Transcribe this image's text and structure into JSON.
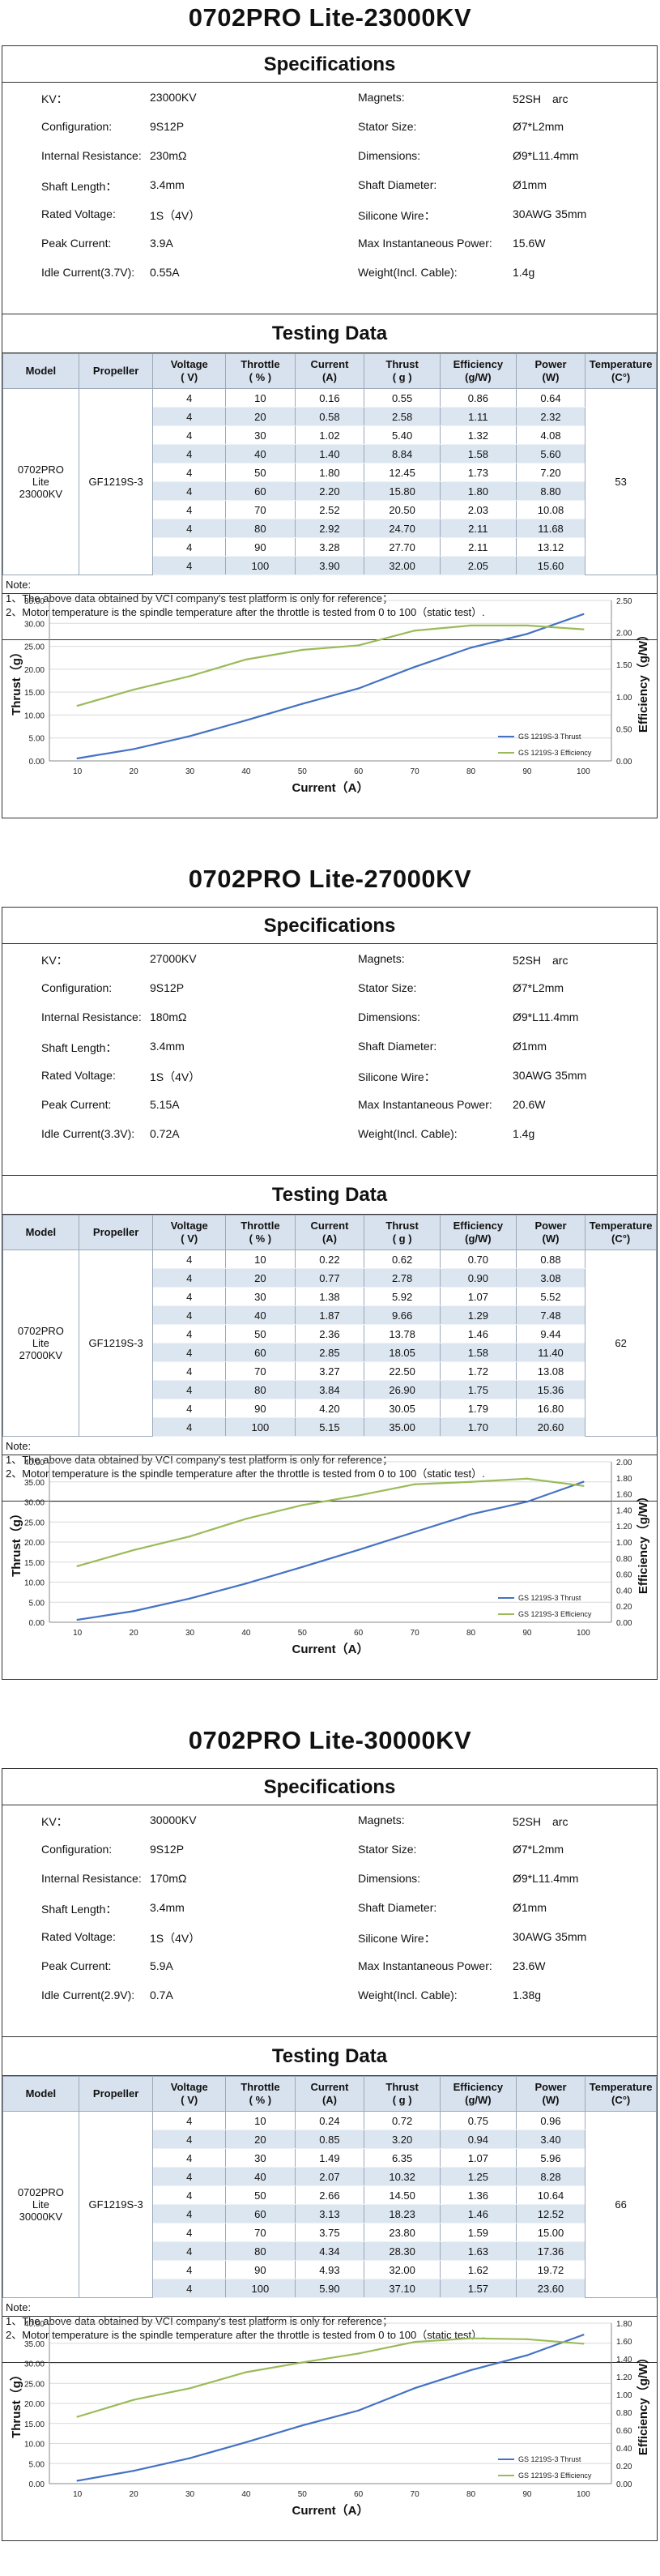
{
  "labels": {
    "specifications": "Specifications",
    "testing_data": "Testing Data",
    "note_title": "Note:",
    "note_1": "1、The above data obtained by VCI company's test platform is only for reference；",
    "note_2": "2、Motor temperature is the spindle temperature after the throttle is tested from 0 to 100（static test）.",
    "spec_keys": {
      "kv": "KV：",
      "configuration": "Configuration:",
      "resistance": "Internal Resistance:",
      "shaft_length": "Shaft Length：",
      "rated_voltage": "Rated Voltage:",
      "peak_current": "Peak Current:",
      "magnets": "Magnets:",
      "stator": "Stator Size:",
      "dimensions": "Dimensions:",
      "shaft_diameter": "Shaft Diameter:",
      "silicone": "Silicone Wire：",
      "max_power": "Max Instantaneous Power:",
      "weight": "Weight(Incl. Cable):"
    },
    "headers": {
      "model": "Model",
      "propeller": "Propeller",
      "voltage": "Voltage\n( V)",
      "throttle": "Throttle\n( % )",
      "current": "Current\n(A)",
      "thrust": "Thrust\n( g )",
      "efficiency": "Efficiency\n(g/W)",
      "power": "Power\n(W)",
      "temperature": "Temperature\n(C°)"
    }
  },
  "products": [
    {
      "title": "0702PRO Lite-23000KV",
      "specs": {
        "kv": "23000KV",
        "configuration": "9S12P",
        "resistance": "230mΩ",
        "shaft_length": "3.4mm",
        "rated_voltage": "1S（4V）",
        "peak_current": "3.9A",
        "idle_key": "Idle Current(3.7V):",
        "idle": "0.55A",
        "magnets": "52SH　arc",
        "stator": "Ø7*L2mm",
        "dimensions": "Ø9*L11.4mm",
        "shaft_diameter": "Ø1mm",
        "silicone": "30AWG 35mm",
        "max_power": "15.6W",
        "weight": "1.4g"
      },
      "model": "0702PRO Lite 23000KV",
      "propeller": "GF1219S-3",
      "temperature": "53",
      "rows": [
        [
          "4",
          "10",
          "0.16",
          "0.55",
          "0.86",
          "0.64"
        ],
        [
          "4",
          "20",
          "0.58",
          "2.58",
          "1.11",
          "2.32"
        ],
        [
          "4",
          "30",
          "1.02",
          "5.40",
          "1.32",
          "4.08"
        ],
        [
          "4",
          "40",
          "1.40",
          "8.84",
          "1.58",
          "5.60"
        ],
        [
          "4",
          "50",
          "1.80",
          "12.45",
          "1.73",
          "7.20"
        ],
        [
          "4",
          "60",
          "2.20",
          "15.80",
          "1.80",
          "8.80"
        ],
        [
          "4",
          "70",
          "2.52",
          "20.50",
          "2.03",
          "10.08"
        ],
        [
          "4",
          "80",
          "2.92",
          "24.70",
          "2.11",
          "11.68"
        ],
        [
          "4",
          "90",
          "3.28",
          "27.70",
          "2.11",
          "13.12"
        ],
        [
          "4",
          "100",
          "3.90",
          "32.00",
          "2.05",
          "15.60"
        ]
      ]
    },
    {
      "title": "0702PRO Lite-27000KV",
      "specs": {
        "kv": "27000KV",
        "configuration": "9S12P",
        "resistance": "180mΩ",
        "shaft_length": "3.4mm",
        "rated_voltage": "1S（4V）",
        "peak_current": "5.15A",
        "idle_key": "Idle Current(3.3V):",
        "idle": "0.72A",
        "magnets": "52SH　arc",
        "stator": "Ø7*L2mm",
        "dimensions": "Ø9*L11.4mm",
        "shaft_diameter": "Ø1mm",
        "silicone": "30AWG 35mm",
        "max_power": "20.6W",
        "weight": "1.4g"
      },
      "model": "0702PRO Lite 27000KV",
      "propeller": "GF1219S-3",
      "temperature": "62",
      "rows": [
        [
          "4",
          "10",
          "0.22",
          "0.62",
          "0.70",
          "0.88"
        ],
        [
          "4",
          "20",
          "0.77",
          "2.78",
          "0.90",
          "3.08"
        ],
        [
          "4",
          "30",
          "1.38",
          "5.92",
          "1.07",
          "5.52"
        ],
        [
          "4",
          "40",
          "1.87",
          "9.66",
          "1.29",
          "7.48"
        ],
        [
          "4",
          "50",
          "2.36",
          "13.78",
          "1.46",
          "9.44"
        ],
        [
          "4",
          "60",
          "2.85",
          "18.05",
          "1.58",
          "11.40"
        ],
        [
          "4",
          "70",
          "3.27",
          "22.50",
          "1.72",
          "13.08"
        ],
        [
          "4",
          "80",
          "3.84",
          "26.90",
          "1.75",
          "15.36"
        ],
        [
          "4",
          "90",
          "4.20",
          "30.05",
          "1.79",
          "16.80"
        ],
        [
          "4",
          "100",
          "5.15",
          "35.00",
          "1.70",
          "20.60"
        ]
      ]
    },
    {
      "title": "0702PRO Lite-30000KV",
      "specs": {
        "kv": "30000KV",
        "configuration": "9S12P",
        "resistance": "170mΩ",
        "shaft_length": "3.4mm",
        "rated_voltage": "1S（4V）",
        "peak_current": "5.9A",
        "idle_key": "Idle Current(2.9V):",
        "idle": "0.7A",
        "magnets": "52SH　arc",
        "stator": "Ø7*L2mm",
        "dimensions": "Ø9*L11.4mm",
        "shaft_diameter": "Ø1mm",
        "silicone": "30AWG 35mm",
        "max_power": "23.6W",
        "weight": "1.38g"
      },
      "model": "0702PRO Lite 30000KV",
      "propeller": "GF1219S-3",
      "temperature": "66",
      "rows": [
        [
          "4",
          "10",
          "0.24",
          "0.72",
          "0.75",
          "0.96"
        ],
        [
          "4",
          "20",
          "0.85",
          "3.20",
          "0.94",
          "3.40"
        ],
        [
          "4",
          "30",
          "1.49",
          "6.35",
          "1.07",
          "5.96"
        ],
        [
          "4",
          "40",
          "2.07",
          "10.32",
          "1.25",
          "8.28"
        ],
        [
          "4",
          "50",
          "2.66",
          "14.50",
          "1.36",
          "10.64"
        ],
        [
          "4",
          "60",
          "3.13",
          "18.23",
          "1.46",
          "12.52"
        ],
        [
          "4",
          "70",
          "3.75",
          "23.80",
          "1.59",
          "15.00"
        ],
        [
          "4",
          "80",
          "4.34",
          "28.30",
          "1.63",
          "17.36"
        ],
        [
          "4",
          "90",
          "4.93",
          "32.00",
          "1.62",
          "19.72"
        ],
        [
          "4",
          "100",
          "5.90",
          "37.10",
          "1.57",
          "23.60"
        ]
      ]
    }
  ],
  "chart_data": [
    {
      "type": "line",
      "x": [
        10,
        20,
        30,
        40,
        50,
        60,
        70,
        80,
        90,
        100
      ],
      "xlabel": "Current（A）",
      "ylabel": "Thrust（g）",
      "y2label": "Efficiency（g/W）",
      "ylim": [
        0,
        35
      ],
      "y2lim": [
        0,
        2.5
      ],
      "yticks": [
        "0.00",
        "5.00",
        "10.00",
        "15.00",
        "20.00",
        "25.00",
        "30.00",
        "35.00"
      ],
      "y2ticks": [
        "0.00",
        "0.50",
        "1.00",
        "1.50",
        "2.00",
        "2.50"
      ],
      "legend": "bottom-right",
      "colors": {
        "thrust": "#4472c4",
        "efficiency": "#9bbb59"
      },
      "series": [
        {
          "name": "GS 1219S-3 Thrust",
          "axis": "left",
          "values": [
            0.55,
            2.58,
            5.4,
            8.84,
            12.45,
            15.8,
            20.5,
            24.7,
            27.7,
            32.0
          ]
        },
        {
          "name": "GS 1219S-3 Efficiency",
          "axis": "right",
          "values": [
            0.86,
            1.11,
            1.32,
            1.58,
            1.73,
            1.8,
            2.03,
            2.11,
            2.11,
            2.05
          ]
        }
      ]
    },
    {
      "type": "line",
      "x": [
        10,
        20,
        30,
        40,
        50,
        60,
        70,
        80,
        90,
        100
      ],
      "xlabel": "Current（A）",
      "ylabel": "Thrust（g）",
      "y2label": "Efficiency（g/W）",
      "ylim": [
        0,
        40
      ],
      "y2lim": [
        0,
        2.0
      ],
      "yticks": [
        "0.00",
        "5.00",
        "10.00",
        "15.00",
        "20.00",
        "25.00",
        "30.00",
        "35.00",
        "40.00"
      ],
      "y2ticks": [
        "0.00",
        "0.20",
        "0.40",
        "0.60",
        "0.80",
        "1.00",
        "1.20",
        "1.40",
        "1.60",
        "1.80",
        "2.00"
      ],
      "legend": "bottom-right",
      "colors": {
        "thrust": "#4472c4",
        "efficiency": "#9bbb59"
      },
      "series": [
        {
          "name": "GS 1219S-3 Thrust",
          "axis": "left",
          "values": [
            0.62,
            2.78,
            5.92,
            9.66,
            13.78,
            18.05,
            22.5,
            26.9,
            30.05,
            35.0
          ]
        },
        {
          "name": "GS 1219S-3 Efficiency",
          "axis": "right",
          "values": [
            0.7,
            0.9,
            1.07,
            1.29,
            1.46,
            1.58,
            1.72,
            1.75,
            1.79,
            1.7
          ]
        }
      ]
    },
    {
      "type": "line",
      "x": [
        10,
        20,
        30,
        40,
        50,
        60,
        70,
        80,
        90,
        100
      ],
      "xlabel": "Current（A）",
      "ylabel": "Thrust（g）",
      "y2label": "Efficiency（g/W）",
      "ylim": [
        0,
        40
      ],
      "y2lim": [
        0,
        1.8
      ],
      "yticks": [
        "0.00",
        "5.00",
        "10.00",
        "15.00",
        "20.00",
        "25.00",
        "30.00",
        "35.00",
        "40.00"
      ],
      "y2ticks": [
        "0.00",
        "0.20",
        "0.40",
        "0.60",
        "0.80",
        "1.00",
        "1.20",
        "1.40",
        "1.60",
        "1.80"
      ],
      "legend": "bottom-right",
      "colors": {
        "thrust": "#4472c4",
        "efficiency": "#9bbb59"
      },
      "series": [
        {
          "name": "GS 1219S-3 Thrust",
          "axis": "left",
          "values": [
            0.72,
            3.2,
            6.35,
            10.32,
            14.5,
            18.23,
            23.8,
            28.3,
            32.0,
            37.1
          ]
        },
        {
          "name": "GS 1219S-3 Efficiency",
          "axis": "right",
          "values": [
            0.75,
            0.94,
            1.07,
            1.25,
            1.36,
            1.46,
            1.59,
            1.63,
            1.62,
            1.57
          ]
        }
      ]
    }
  ]
}
